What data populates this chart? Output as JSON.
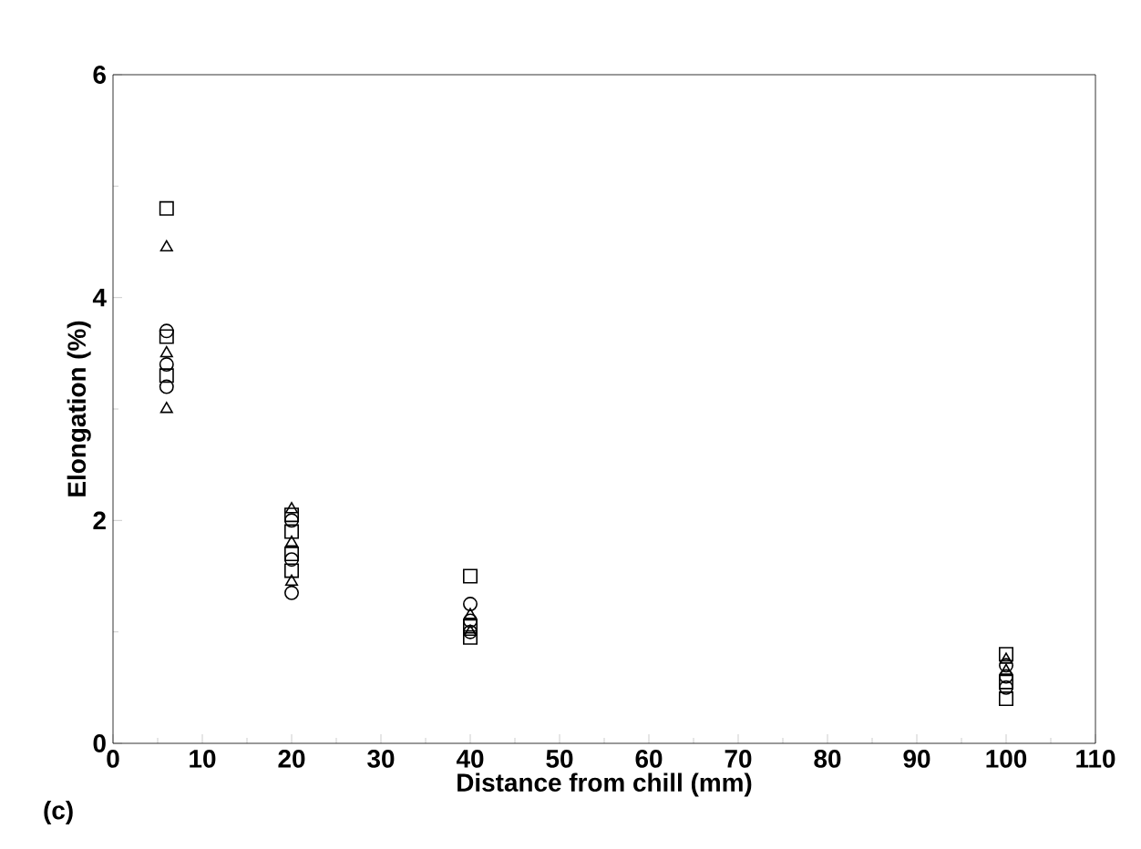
{
  "chart_data": {
    "type": "scatter",
    "xlabel": "Distance from chill (mm)",
    "ylabel": "Elongation (%)",
    "annotations": [
      "(c)"
    ],
    "xlim": [
      0,
      110
    ],
    "xticks": [
      0,
      10,
      20,
      30,
      40,
      50,
      60,
      70,
      80,
      90,
      100,
      110
    ],
    "ylim": [
      0,
      6
    ],
    "yticks": [
      0,
      2,
      4,
      6
    ],
    "grid": false,
    "series": [
      {
        "color": "#000000",
        "marker": "square",
        "x": [
          6,
          6,
          6,
          20,
          20,
          20,
          20,
          40,
          40,
          40,
          100,
          100,
          100
        ],
        "values": [
          4.8,
          3.65,
          3.3,
          2.05,
          1.9,
          1.7,
          1.55,
          1.5,
          1.05,
          0.95,
          0.8,
          0.55,
          0.4
        ]
      },
      {
        "color": "#000000",
        "marker": "triangle",
        "x": [
          6,
          6,
          6,
          20,
          20,
          20,
          40,
          40,
          100,
          100
        ],
        "values": [
          4.45,
          3.5,
          3.0,
          2.1,
          1.8,
          1.45,
          1.15,
          1.0,
          0.75,
          0.65
        ]
      },
      {
        "color": "#000000",
        "marker": "circle",
        "x": [
          6,
          6,
          6,
          20,
          20,
          20,
          40,
          40,
          40,
          100,
          100,
          100
        ],
        "values": [
          3.7,
          3.4,
          3.2,
          2.0,
          1.65,
          1.35,
          1.25,
          1.1,
          1.0,
          0.7,
          0.6,
          0.5
        ]
      }
    ]
  }
}
